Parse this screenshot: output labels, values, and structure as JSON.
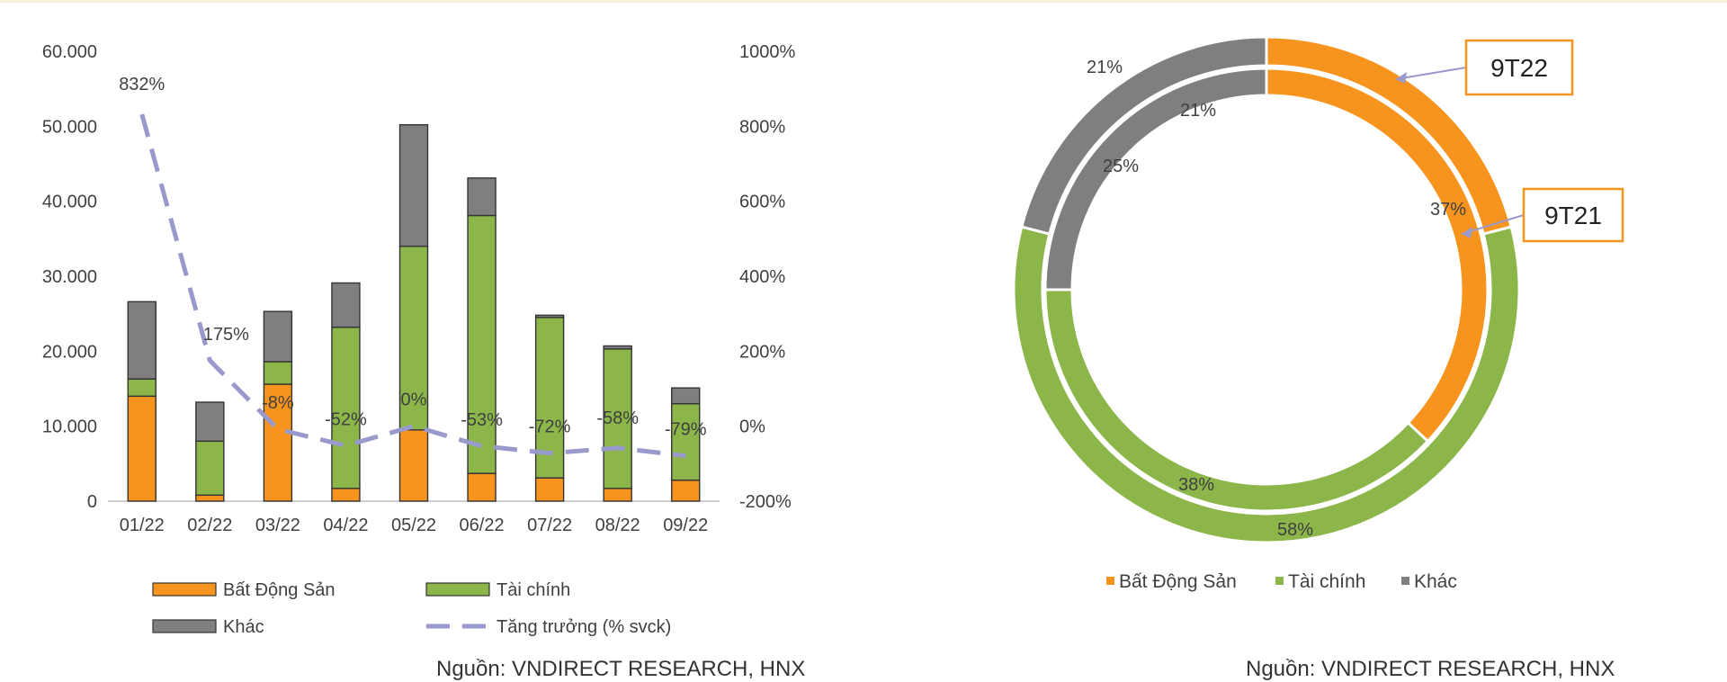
{
  "chart_data": [
    {
      "type": "bar",
      "stacked": true,
      "categories": [
        "01/22",
        "02/22",
        "03/22",
        "04/22",
        "05/22",
        "06/22",
        "07/22",
        "08/22",
        "09/22"
      ],
      "series": [
        {
          "name": "Bất Động Sản",
          "kind": "bar",
          "color": "#f7941d",
          "values": [
            14000,
            800,
            15600,
            1700,
            9500,
            3700,
            3100,
            1700,
            2800
          ]
        },
        {
          "name": "Tài chính",
          "kind": "bar",
          "color": "#8cb54a",
          "values": [
            2300,
            7200,
            3000,
            21500,
            24500,
            34400,
            21400,
            18600,
            10200
          ]
        },
        {
          "name": "Khác",
          "kind": "bar",
          "color": "#7f7f7f",
          "values": [
            10300,
            5200,
            6700,
            5900,
            16200,
            5000,
            300,
            400,
            2100
          ]
        },
        {
          "name": "Tăng trưởng (% svck)",
          "kind": "line",
          "axis": "right",
          "color": "#9999cc",
          "values": [
            832,
            175,
            -8,
            -52,
            0,
            -53,
            -72,
            -58,
            -79
          ]
        }
      ],
      "line_labels": [
        "832%",
        "175%",
        "-8%",
        "-52%",
        "0%",
        "-53%",
        "-72%",
        "-58%",
        "-79%"
      ],
      "ylim": [
        0,
        60000
      ],
      "y_ticks": [
        "0",
        "10.000",
        "20.000",
        "30.000",
        "40.000",
        "50.000",
        "60.000"
      ],
      "y2lim": [
        -200,
        1000
      ],
      "y2_ticks": [
        "-200%",
        "0%",
        "200%",
        "400%",
        "600%",
        "800%",
        "1000%"
      ],
      "legend_position": "bottom",
      "grid": false
    },
    {
      "type": "pie",
      "donut": true,
      "categories": [
        "Bất Động Sản",
        "Tài chính",
        "Khác"
      ],
      "colors": [
        "#f7941d",
        "#8cb54a",
        "#7f7f7f"
      ],
      "rings": [
        {
          "name": "9T22",
          "position": "outer",
          "values": [
            21,
            58,
            21
          ],
          "labels": [
            "21%",
            "58%",
            "21%"
          ]
        },
        {
          "name": "9T21",
          "position": "inner",
          "values": [
            37,
            38,
            25
          ],
          "labels": [
            "37%",
            "38%",
            "25%"
          ]
        }
      ],
      "legend_position": "bottom"
    }
  ],
  "source_left": "Nguồn: VNDIRECT RESEARCH, HNX",
  "source_right": "Nguồn: VNDIRECT RESEARCH, HNX"
}
